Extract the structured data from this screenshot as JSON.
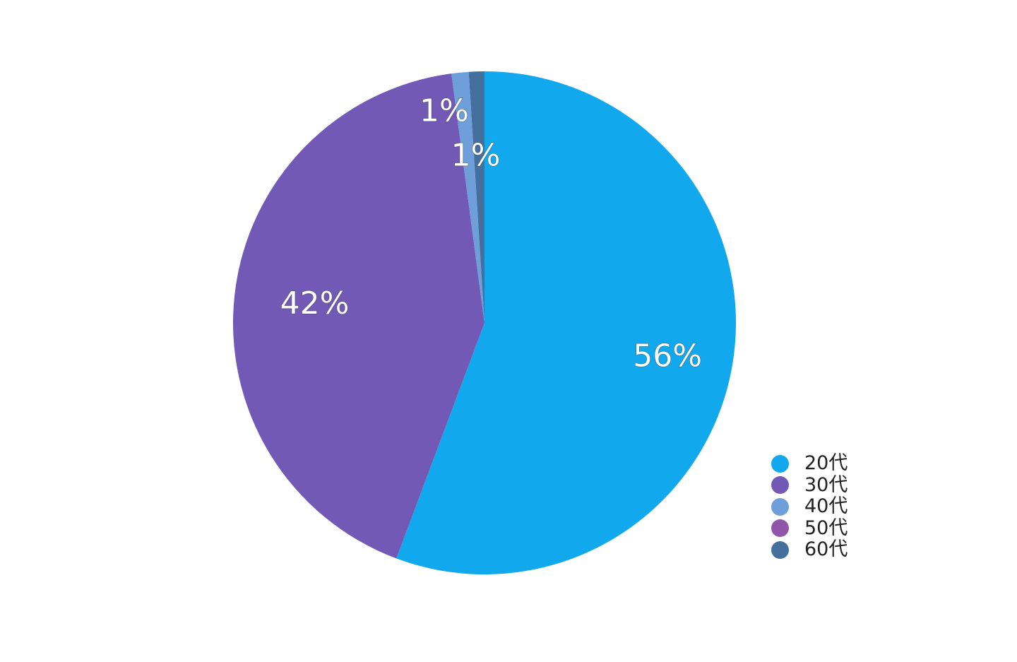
{
  "chart_data": {
    "type": "pie",
    "title": "",
    "categories": [
      "20代",
      "30代",
      "40代",
      "50代",
      "60代"
    ],
    "values": [
      55.7,
      42.2,
      1.1,
      0,
      1.0
    ],
    "data_labels": [
      "56%",
      "42%",
      "1%",
      "",
      "1%"
    ],
    "colors": [
      "#12A8EE",
      "#7159B5",
      "#6E9FDB",
      "#8F55A8",
      "#45709D"
    ],
    "start_angle_deg": 0,
    "direction": "clockwise",
    "legend_position": "bottom-right"
  }
}
